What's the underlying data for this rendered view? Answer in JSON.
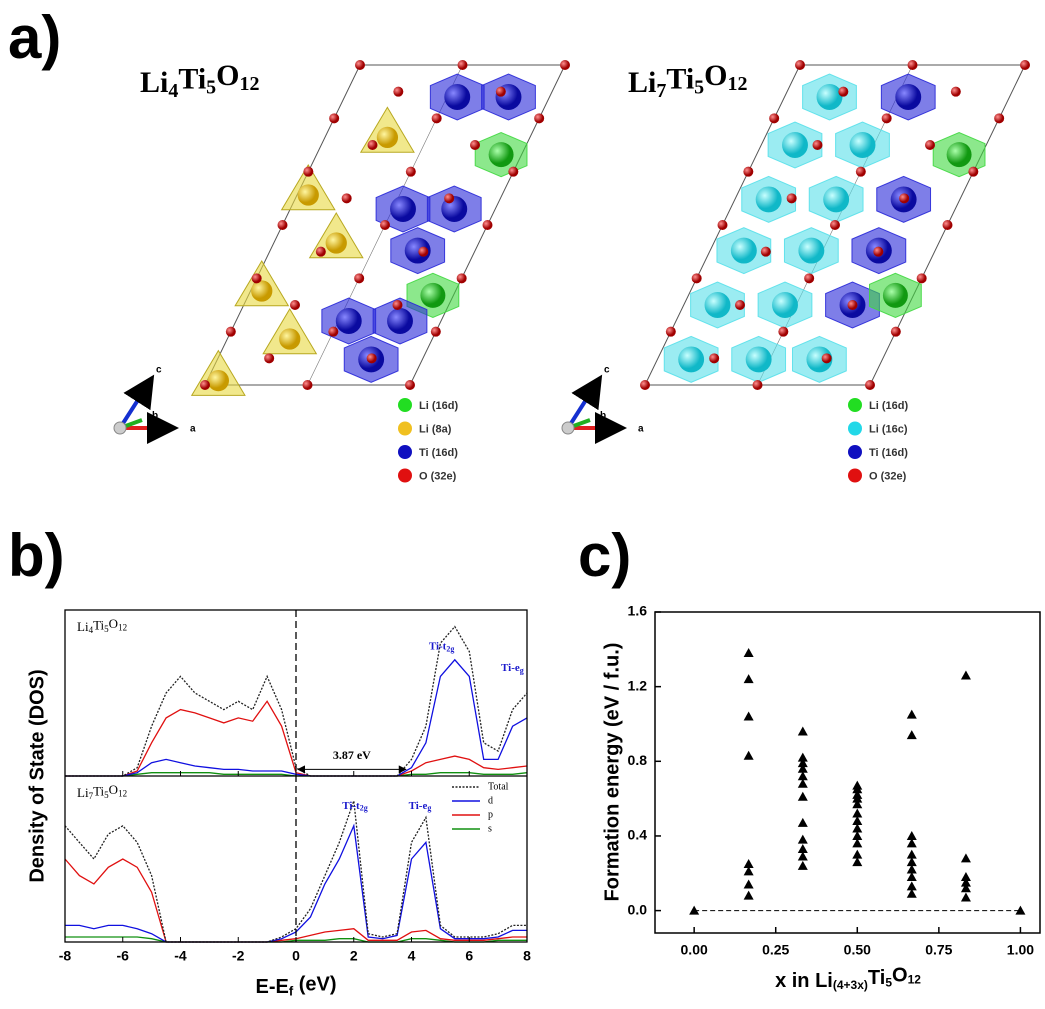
{
  "panel_labels": [
    "a)",
    "b)",
    "c)"
  ],
  "structures": {
    "axis_labels": [
      "c",
      "b",
      "a"
    ],
    "cells": [
      {
        "formula": [
          "Li",
          "4",
          "Ti",
          "5",
          "O",
          "12"
        ],
        "legend": [
          {
            "label": "Li (16d)",
            "color": "#22dd22"
          },
          {
            "label": "Li (8a)",
            "color": "#f0c020"
          },
          {
            "label": "Ti (16d)",
            "color": "#1010c0"
          },
          {
            "label": "O (32e)",
            "color": "#e01010"
          }
        ]
      },
      {
        "formula": [
          "Li",
          "7",
          "Ti",
          "5",
          "O",
          "12"
        ],
        "legend": [
          {
            "label": "Li (16d)",
            "color": "#22dd22"
          },
          {
            "label": "Li (16c)",
            "color": "#22d8e8"
          },
          {
            "label": "Ti (16d)",
            "color": "#1010c0"
          },
          {
            "label": "O (32e)",
            "color": "#e01010"
          }
        ]
      }
    ]
  },
  "chart_data": [
    {
      "type": "line",
      "ylabel": "Density of State (DOS)",
      "xlabel": [
        "E-E",
        "f",
        " (eV)"
      ],
      "xlim": [
        -8,
        8
      ],
      "xticks": [
        -8,
        -6,
        -4,
        -2,
        0,
        2,
        4,
        6,
        8
      ],
      "ylim": [
        0,
        10
      ],
      "fermi_level": 0,
      "subplot_labels": [
        [
          "Li",
          "4",
          "Ti",
          "5",
          "O",
          "12"
        ],
        [
          "Li",
          "7",
          "Ti",
          "5",
          "O",
          "12"
        ]
      ],
      "x": [
        -8,
        -7.5,
        -7,
        -6.5,
        -6,
        -5.5,
        -5,
        -4.5,
        -4,
        -3.5,
        -3,
        -2.5,
        -2,
        -1.5,
        -1,
        -0.5,
        0,
        0.5,
        1,
        1.5,
        2,
        2.5,
        3,
        3.5,
        4,
        4.5,
        5,
        5.5,
        6,
        6.5,
        7,
        7.5,
        8
      ],
      "series": [
        {
          "name": "Total",
          "color": "#222222",
          "dashed": true,
          "values": [
            [
              0,
              0,
              0,
              0,
              0,
              0.5,
              3,
              5,
              6,
              5,
              4.5,
              4,
              4.5,
              4,
              6,
              4,
              0.5,
              0,
              0,
              0,
              0,
              0,
              0,
              0,
              1,
              3,
              8,
              9,
              7.5,
              2,
              1.5,
              4,
              5
            ],
            [
              7,
              6,
              5,
              6.5,
              7,
              6,
              4,
              0,
              0,
              0,
              0,
              0,
              0,
              0,
              0,
              0.3,
              0.8,
              2,
              4,
              6,
              8.5,
              0.5,
              0.3,
              0.5,
              6,
              7.5,
              1,
              0.3,
              0.3,
              0.3,
              0.5,
              1,
              1
            ]
          ]
        },
        {
          "name": "d",
          "color": "#1010e0",
          "dashed": false,
          "values": [
            [
              0,
              0,
              0,
              0,
              0,
              0.2,
              0.8,
              1,
              0.8,
              0.6,
              0.5,
              0.4,
              0.4,
              0.3,
              0.3,
              0.3,
              0.1,
              0,
              0,
              0,
              0,
              0,
              0,
              0,
              0.5,
              2,
              6,
              7,
              6,
              1,
              1,
              3,
              3.5
            ],
            [
              1,
              1,
              0.8,
              1,
              1,
              0.8,
              0.5,
              0,
              0,
              0,
              0,
              0,
              0,
              0,
              0,
              0.2,
              0.6,
              1.5,
              3.5,
              5,
              7,
              0.3,
              0.2,
              0.4,
              5,
              6,
              0.8,
              0.2,
              0.2,
              0.2,
              0.3,
              0.7,
              0.7
            ]
          ]
        },
        {
          "name": "p",
          "color": "#e01010",
          "dashed": false,
          "values": [
            [
              0,
              0,
              0,
              0,
              0,
              0.3,
              2,
              3.5,
              4,
              3.8,
              3.5,
              3.2,
              3.5,
              3.3,
              4.5,
              3,
              0.2,
              0,
              0,
              0,
              0,
              0,
              0,
              0,
              0.3,
              0.8,
              1,
              1.2,
              1,
              0.5,
              0.4,
              0.5,
              0.6
            ],
            [
              5,
              4,
              3.5,
              4.5,
              5,
              4.5,
              3,
              0,
              0,
              0,
              0,
              0,
              0,
              0,
              0,
              0.1,
              0.2,
              0.4,
              0.6,
              0.7,
              0.8,
              0.1,
              0.1,
              0.1,
              0.6,
              0.7,
              0.2,
              0.1,
              0.1,
              0.1,
              0.2,
              0.3,
              0.3
            ]
          ]
        },
        {
          "name": "s",
          "color": "#109010",
          "dashed": false,
          "values": [
            [
              0,
              0,
              0,
              0,
              0,
              0.1,
              0.2,
              0.2,
              0.2,
              0.2,
              0.2,
              0.1,
              0.1,
              0.1,
              0.1,
              0.1,
              0,
              0,
              0,
              0,
              0,
              0,
              0,
              0,
              0.1,
              0.1,
              0.2,
              0.2,
              0.2,
              0.1,
              0.1,
              0.1,
              0.2
            ],
            [
              0.3,
              0.3,
              0.3,
              0.3,
              0.3,
              0.3,
              0.2,
              0,
              0,
              0,
              0,
              0,
              0,
              0,
              0,
              0,
              0.1,
              0.1,
              0.1,
              0.2,
              0.2,
              0,
              0,
              0,
              0.2,
              0.2,
              0.1,
              0,
              0,
              0,
              0.1,
              0.1,
              0.1
            ]
          ]
        }
      ],
      "annotations": [
        {
          "text": [
            "Ti-t",
            "2g"
          ],
          "subplot": 0,
          "x": 4.6,
          "y": 7.8,
          "color": "#1a1acc"
        },
        {
          "text": [
            "Ti-e",
            "g"
          ],
          "subplot": 0,
          "x": 7.1,
          "y": 6.5,
          "color": "#1a1acc"
        },
        {
          "text": [
            "Ti-t",
            "2g"
          ],
          "subplot": 1,
          "x": 1.6,
          "y": 8.2,
          "color": "#1a1acc"
        },
        {
          "text": [
            "Ti-e",
            "g"
          ],
          "subplot": 1,
          "x": 3.9,
          "y": 8.2,
          "color": "#1a1acc"
        }
      ],
      "gap": {
        "text": "3.87 eV",
        "subplot": 0,
        "x1": 0,
        "x2": 3.87,
        "y": 0.4
      }
    },
    {
      "type": "scatter",
      "ylabel": "Formation energy (eV / f.u.)",
      "xlabel": [
        "x in Li",
        "(4+3x)",
        "Ti",
        "5",
        "O",
        "12"
      ],
      "xlim": [
        -0.12,
        1.06
      ],
      "ylim": [
        -0.12,
        1.6
      ],
      "xticks": [
        {
          "value": 0,
          "label": "0.00"
        },
        {
          "value": 0.25,
          "label": "0.25"
        },
        {
          "value": 0.5,
          "label": "0.50"
        },
        {
          "value": 0.75,
          "label": "0.75"
        },
        {
          "value": 1,
          "label": "1.00"
        }
      ],
      "yticks": [
        {
          "value": 0,
          "label": "0.0"
        },
        {
          "value": 0.4,
          "label": "0.4"
        },
        {
          "value": 0.8,
          "label": "0.8"
        },
        {
          "value": 1.2,
          "label": "1.2"
        },
        {
          "value": 1.6,
          "label": "1.6"
        }
      ],
      "baseline": 0,
      "color": "#000000",
      "x": [
        0,
        0.167,
        0.167,
        0.167,
        0.167,
        0.167,
        0.167,
        0.167,
        0.167,
        0.333,
        0.333,
        0.333,
        0.333,
        0.333,
        0.333,
        0.333,
        0.333,
        0.333,
        0.333,
        0.333,
        0.333,
        0.5,
        0.5,
        0.5,
        0.5,
        0.5,
        0.5,
        0.5,
        0.5,
        0.5,
        0.5,
        0.5,
        0.5,
        0.667,
        0.667,
        0.667,
        0.667,
        0.667,
        0.667,
        0.667,
        0.667,
        0.667,
        0.667,
        0.833,
        0.833,
        0.833,
        0.833,
        0.833,
        0.833,
        1
      ],
      "y": [
        0,
        1.38,
        1.24,
        1.04,
        0.83,
        0.25,
        0.21,
        0.14,
        0.08,
        0.96,
        0.82,
        0.79,
        0.76,
        0.72,
        0.68,
        0.61,
        0.47,
        0.38,
        0.33,
        0.29,
        0.24,
        0.67,
        0.65,
        0.62,
        0.6,
        0.57,
        0.52,
        0.48,
        0.44,
        0.4,
        0.36,
        0.3,
        0.26,
        1.05,
        0.94,
        0.4,
        0.36,
        0.3,
        0.26,
        0.22,
        0.18,
        0.13,
        0.09,
        1.26,
        0.28,
        0.18,
        0.15,
        0.12,
        0.07,
        0
      ]
    }
  ]
}
